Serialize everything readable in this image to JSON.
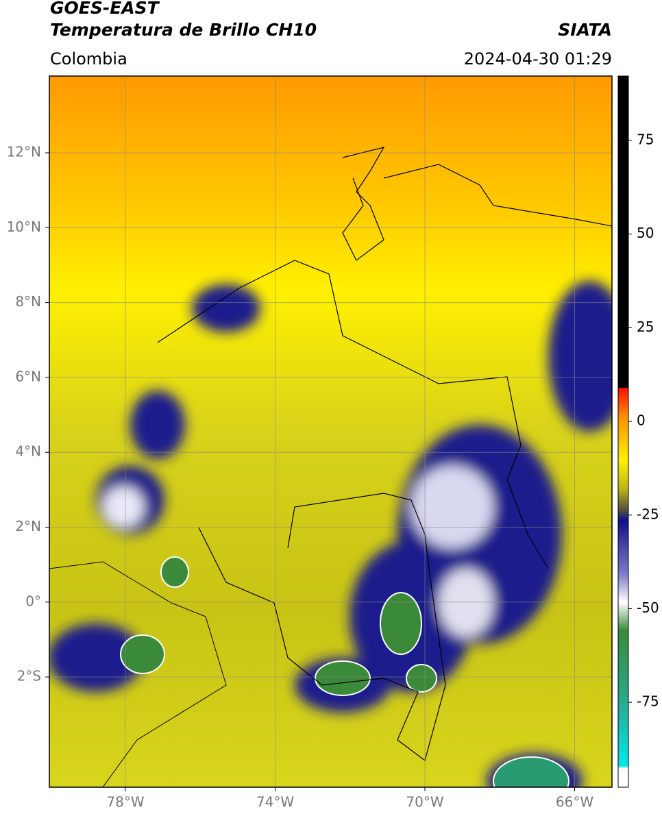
{
  "header": {
    "title_line1": "GOES-EAST",
    "title_line2": "Temperatura de Brillo CH10",
    "region": "Colombia",
    "source": "SIATA",
    "timestamp": "2024-04-30 01:29"
  },
  "map": {
    "lat_labels": [
      "12°N",
      "10°N",
      "8°N",
      "6°N",
      "4°N",
      "2°N",
      "0°",
      "2°S"
    ],
    "lon_labels": [
      "78°W",
      "74°W",
      "70°W",
      "66°W"
    ]
  },
  "colorbar": {
    "ticks": [
      75,
      50,
      25,
      0,
      -25,
      -50,
      -75
    ]
  }
}
